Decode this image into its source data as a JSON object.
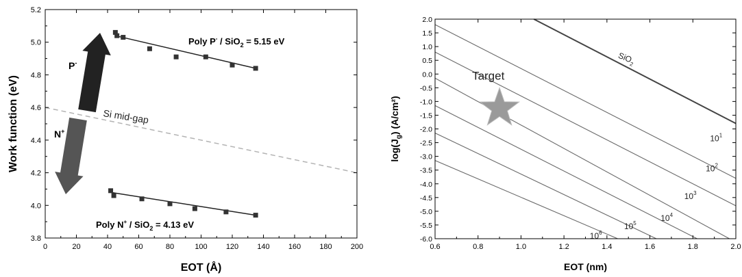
{
  "chart_data": [
    {
      "type": "scatter",
      "xlabel": "EOT (Å)",
      "ylabel": "Work function (eV)",
      "xlim": [
        0,
        200
      ],
      "ylim": [
        3.8,
        5.2
      ],
      "xticks": [
        "0",
        "20",
        "40",
        "60",
        "80",
        "100",
        "120",
        "140",
        "160",
        "180",
        "200"
      ],
      "yticks": [
        "3.8",
        "4.0",
        "4.2",
        "4.4",
        "4.6",
        "4.8",
        "5.0",
        "5.2"
      ],
      "series": [
        {
          "name": "Poly P / SiO2 = 5.15 eV",
          "label_main": "Poly P",
          "label_sup": "-",
          "label_mid": " / SiO",
          "label_sub": "2",
          "label_end": " = 5.15 eV",
          "points": [
            [
              45,
              5.06
            ],
            [
              46,
              5.04
            ],
            [
              50,
              5.03
            ],
            [
              67,
              4.96
            ],
            [
              84,
              4.91
            ],
            [
              103,
              4.91
            ],
            [
              120,
              4.86
            ],
            [
              135,
              4.84
            ]
          ],
          "fit": [
            [
              45,
              5.04
            ],
            [
              135,
              4.84
            ]
          ]
        },
        {
          "name": "Poly N+ / SiO2 = 4.13 eV",
          "label_main": "Poly N",
          "label_sup": "+",
          "label_mid": " / SiO",
          "label_sub": "2",
          "label_end": " = 4.13 eV",
          "points": [
            [
              42,
              4.09
            ],
            [
              44,
              4.06
            ],
            [
              62,
              4.04
            ],
            [
              80,
              4.01
            ],
            [
              96,
              3.98
            ],
            [
              116,
              3.96
            ],
            [
              135,
              3.94
            ]
          ],
          "fit": [
            [
              42,
              4.08
            ],
            [
              135,
              3.94
            ]
          ]
        }
      ],
      "midgap_line": {
        "label": "Si mid-gap",
        "from": [
          0,
          4.6
        ],
        "to": [
          200,
          4.2
        ]
      },
      "arrow_labels": {
        "p": {
          "main": "P",
          "sup": "-"
        },
        "n": {
          "main": "N",
          "sup": "+"
        }
      },
      "colors": {
        "markers": "#333333",
        "arrow_p": "#222222",
        "arrow_n": "#555555",
        "midgap": "#b3b3b3"
      }
    },
    {
      "type": "line",
      "xlabel": "EOT (nm)",
      "ylabel_main": "log(J",
      "ylabel_sub": "g",
      "ylabel_end": ") (A/cm²)",
      "xlim": [
        0.6,
        2.0
      ],
      "ylim": [
        -6.0,
        2.0
      ],
      "xticks": [
        "0.6",
        "0.8",
        "1.0",
        "1.2",
        "1.4",
        "1.6",
        "1.8",
        "2.0"
      ],
      "yticks": [
        "2.0",
        "1.5",
        "1.0",
        "0.5",
        "0.0",
        "-0.5",
        "-1.0",
        "-1.5",
        "-2.0",
        "-2.5",
        "-3.0",
        "-3.5",
        "-4.0",
        "-4.5",
        "-5.0",
        "-5.5",
        "-6.0"
      ],
      "series": [
        {
          "name": "SiO2",
          "main": "SiO",
          "sub": "2",
          "from": [
            1.06,
            2.0
          ],
          "to": [
            2.0,
            -1.8
          ],
          "bold": true
        },
        {
          "name": "10^1",
          "main": "10",
          "sup": "1",
          "from": [
            0.6,
            1.8
          ],
          "to": [
            2.0,
            -3.8
          ]
        },
        {
          "name": "10^2",
          "main": "10",
          "sup": "2",
          "from": [
            0.6,
            0.8
          ],
          "to": [
            2.0,
            -4.8
          ]
        },
        {
          "name": "10^3",
          "main": "10",
          "sup": "3",
          "from": [
            0.6,
            -0.15
          ],
          "to": [
            1.97,
            -6.0
          ]
        },
        {
          "name": "10^4",
          "main": "10",
          "sup": "4",
          "from": [
            0.6,
            -1.15
          ],
          "to": [
            1.82,
            -6.0
          ]
        },
        {
          "name": "10^5",
          "main": "10",
          "sup": "5",
          "from": [
            0.6,
            -2.15
          ],
          "to": [
            1.63,
            -6.0
          ]
        },
        {
          "name": "10^6",
          "main": "10",
          "sup": "6",
          "from": [
            0.6,
            -3.15
          ],
          "to": [
            1.45,
            -6.0
          ]
        }
      ],
      "target": {
        "label": "Target",
        "x": 0.9,
        "y": -1.25
      },
      "colors": {
        "lines": "#6a6a6a",
        "sio2": "#444444",
        "star": "#9a9a9a"
      }
    }
  ]
}
